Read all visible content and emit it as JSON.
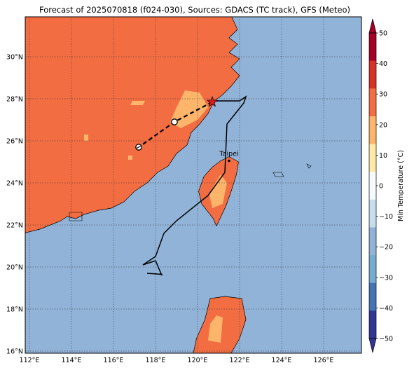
{
  "title": "Forecast of 2025070818 (f024-030), Sources: GDACS (TC track), GFS (Meteo)",
  "map": {
    "lon_range": [
      111.8,
      127.8
    ],
    "lat_range": [
      15.9,
      31.9
    ],
    "lon_ticks": [
      {
        "value": 112,
        "label": "112°E"
      },
      {
        "value": 114,
        "label": "114°E"
      },
      {
        "value": 116,
        "label": "116°E"
      },
      {
        "value": 118,
        "label": "118°E"
      },
      {
        "value": 120,
        "label": "120°E"
      },
      {
        "value": 122,
        "label": "122°E"
      },
      {
        "value": 124,
        "label": "124°E"
      },
      {
        "value": 126,
        "label": "126°E"
      }
    ],
    "lat_ticks": [
      {
        "value": 16,
        "label": "16°N"
      },
      {
        "value": 18,
        "label": "18°N"
      },
      {
        "value": 20,
        "label": "20°N"
      },
      {
        "value": 22,
        "label": "22°N"
      },
      {
        "value": 24,
        "label": "24°N"
      },
      {
        "value": 26,
        "label": "26°N"
      },
      {
        "value": 28,
        "label": "28°N"
      },
      {
        "value": 30,
        "label": "30°N"
      }
    ],
    "grid": true,
    "colors": {
      "sea": "#91b3d8",
      "land": "#f26d41",
      "warm_land": "#fdb46b",
      "coast": "#000000",
      "track": "#000000",
      "star": "#e31a1c"
    },
    "city": {
      "name": "Taipei",
      "lon": 121.5,
      "lat": 25.05
    },
    "observed_track": [
      [
        117.6,
        19.7
      ],
      [
        118.3,
        19.65
      ],
      [
        118.3,
        19.6
      ],
      [
        118.0,
        20.3
      ],
      [
        117.4,
        20.1
      ],
      [
        118.0,
        20.5
      ],
      [
        118.4,
        21.6
      ],
      [
        119.0,
        22.2
      ],
      [
        120.5,
        23.4
      ],
      [
        121.3,
        24.5
      ],
      [
        121.4,
        26.8
      ],
      [
        122.2,
        27.8
      ],
      [
        122.3,
        28.1
      ],
      [
        122.0,
        27.9
      ],
      [
        120.8,
        27.9
      ]
    ],
    "forecast_track": [
      [
        120.7,
        27.85
      ],
      [
        118.9,
        26.9
      ],
      [
        117.2,
        25.7
      ]
    ],
    "forecast_points": [
      {
        "lon": 120.7,
        "lat": 27.85,
        "marker": "star"
      },
      {
        "lon": 118.9,
        "lat": 26.9,
        "marker": "hollow-circle"
      },
      {
        "lon": 117.2,
        "lat": 25.7,
        "marker": "hatched-circle"
      }
    ]
  },
  "colorbar": {
    "label": "Min Temperature (°C)",
    "levels": [
      -50,
      -40,
      -30,
      -20,
      -10,
      0,
      10,
      20,
      30,
      40,
      50
    ],
    "tick_labels": [
      "−50",
      "−40",
      "−30",
      "−20",
      "−10",
      "0",
      "10",
      "20",
      "30",
      "40",
      "50"
    ],
    "colors": [
      "#313695",
      "#4575b4",
      "#74add1",
      "#91b3d8",
      "#c5ddee",
      "#f5fbfc",
      "#fee9a6",
      "#fdb46b",
      "#f26d41",
      "#d73027",
      "#a50026"
    ],
    "extend": "both"
  }
}
